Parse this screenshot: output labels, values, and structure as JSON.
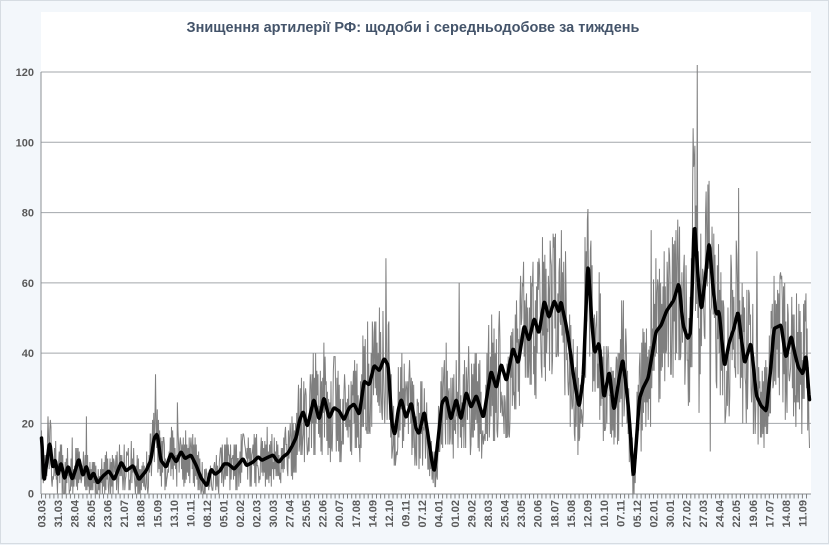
{
  "chart_data": {
    "type": "line",
    "title": "Знищення артилерії РФ: щодоби і середньодобове за тиждень",
    "xlabel": "",
    "ylabel": "",
    "ylim": [
      0,
      124
    ],
    "y_ticks": [
      0,
      20,
      40,
      60,
      80,
      100,
      120
    ],
    "grid": "horizontal",
    "legend": "none",
    "x_label_interval_days": 28,
    "x_minor_tick_interval_days": 7,
    "total_days": 1300,
    "x_labels": [
      "03.03",
      "31.03",
      "28.04",
      "26.05",
      "23.06",
      "21.07",
      "18.08",
      "15.09",
      "13.10",
      "10.11",
      "08.12",
      "05.01",
      "02.02",
      "02.03",
      "30.03",
      "27.04",
      "25.05",
      "22.06",
      "20.07",
      "17.08",
      "14.09",
      "12.10",
      "09.11",
      "07.12",
      "04.01",
      "01.02",
      "29.02",
      "28.03",
      "25.04",
      "23.05",
      "20.06",
      "18.07",
      "15.08",
      "12.09",
      "10.10",
      "07.11",
      "05.12",
      "02.01",
      "30.01",
      "27.02",
      "27.03",
      "24.04",
      "22.05",
      "19.06",
      "17.07",
      "14.08",
      "11.09"
    ],
    "series": [
      {
        "name": "щодоби",
        "kind": "daily",
        "color": "#7f7f7f",
        "stroke_width": 1
      },
      {
        "name": "середньодобове за тиждень",
        "kind": "weekly-average",
        "color": "#000000",
        "stroke_width": 3.5
      }
    ],
    "weekly_avg_anchors": [
      [
        0,
        17
      ],
      [
        4,
        3
      ],
      [
        9,
        9
      ],
      [
        14,
        15
      ],
      [
        19,
        7
      ],
      [
        23,
        10
      ],
      [
        28,
        5
      ],
      [
        33,
        9
      ],
      [
        39,
        4
      ],
      [
        45,
        8
      ],
      [
        52,
        4
      ],
      [
        58,
        7
      ],
      [
        63,
        10
      ],
      [
        70,
        5
      ],
      [
        76,
        8
      ],
      [
        82,
        4
      ],
      [
        88,
        6
      ],
      [
        95,
        3
      ],
      [
        104,
        5
      ],
      [
        114,
        6.5
      ],
      [
        123,
        4
      ],
      [
        135,
        9
      ],
      [
        143,
        6.5
      ],
      [
        155,
        8
      ],
      [
        165,
        4
      ],
      [
        177,
        6.5
      ],
      [
        185,
        9.5
      ],
      [
        191,
        16
      ],
      [
        196,
        17
      ],
      [
        202,
        9.5
      ],
      [
        211,
        7.5
      ],
      [
        219,
        11.5
      ],
      [
        228,
        9
      ],
      [
        236,
        12
      ],
      [
        243,
        10
      ],
      [
        253,
        11
      ],
      [
        262,
        8
      ],
      [
        270,
        4.5
      ],
      [
        280,
        2.2
      ],
      [
        287,
        7
      ],
      [
        294,
        5.5
      ],
      [
        302,
        6.5
      ],
      [
        309,
        8.5
      ],
      [
        316,
        8.5
      ],
      [
        326,
        7
      ],
      [
        334,
        8.5
      ],
      [
        341,
        10
      ],
      [
        347,
        8
      ],
      [
        358,
        9
      ],
      [
        367,
        10.5
      ],
      [
        373,
        9.5
      ],
      [
        385,
        10.5
      ],
      [
        392,
        11
      ],
      [
        398,
        9.5
      ],
      [
        402,
        9
      ],
      [
        409,
        10.5
      ],
      [
        417,
        11.5
      ],
      [
        424,
        13.5
      ],
      [
        431,
        16
      ],
      [
        437,
        21
      ],
      [
        443,
        23.5
      ],
      [
        450,
        19
      ],
      [
        461,
        27
      ],
      [
        470,
        21
      ],
      [
        478,
        27.5
      ],
      [
        487,
        21.5
      ],
      [
        495,
        24.5
      ],
      [
        504,
        23.5
      ],
      [
        512,
        21
      ],
      [
        521,
        24.5
      ],
      [
        529,
        25.5
      ],
      [
        538,
        22.5
      ],
      [
        546,
        32
      ],
      [
        555,
        31
      ],
      [
        563,
        36.5
      ],
      [
        572,
        35
      ],
      [
        580,
        38.5
      ],
      [
        587,
        36.5
      ],
      [
        593,
        20
      ],
      [
        598,
        16.5
      ],
      [
        604,
        24
      ],
      [
        609,
        27
      ],
      [
        617,
        21.5
      ],
      [
        626,
        26
      ],
      [
        634,
        18.5
      ],
      [
        639,
        17
      ],
      [
        648,
        23.5
      ],
      [
        654,
        17
      ],
      [
        660,
        10
      ],
      [
        665,
        6
      ],
      [
        671,
        15
      ],
      [
        678,
        26
      ],
      [
        685,
        27.5
      ],
      [
        693,
        21
      ],
      [
        702,
        27
      ],
      [
        710,
        21
      ],
      [
        719,
        29
      ],
      [
        727,
        24.5
      ],
      [
        736,
        28
      ],
      [
        748,
        21.5
      ],
      [
        761,
        35
      ],
      [
        770,
        30
      ],
      [
        778,
        37
      ],
      [
        787,
        32
      ],
      [
        798,
        41.5
      ],
      [
        807,
        37
      ],
      [
        817,
        48
      ],
      [
        825,
        43.5
      ],
      [
        834,
        50
      ],
      [
        842,
        45.5
      ],
      [
        851,
        55
      ],
      [
        859,
        50
      ],
      [
        868,
        55
      ],
      [
        876,
        51.5
      ],
      [
        879,
        55
      ],
      [
        888,
        48
      ],
      [
        893,
        43
      ],
      [
        901,
        33
      ],
      [
        910,
        24.5
      ],
      [
        917,
        33
      ],
      [
        925,
        66.5
      ],
      [
        931,
        50
      ],
      [
        936,
        40
      ],
      [
        944,
        43
      ],
      [
        952,
        27
      ],
      [
        961,
        35
      ],
      [
        969,
        23.5
      ],
      [
        978,
        33
      ],
      [
        984,
        38.5
      ],
      [
        993,
        25.5
      ],
      [
        998,
        14
      ],
      [
        1002,
        4
      ],
      [
        1007,
        15
      ],
      [
        1012,
        27
      ],
      [
        1018,
        30
      ],
      [
        1027,
        33
      ],
      [
        1040,
        46
      ],
      [
        1049,
        48
      ],
      [
        1058,
        52
      ],
      [
        1070,
        55
      ],
      [
        1079,
        60
      ],
      [
        1086,
        48
      ],
      [
        1094,
        44
      ],
      [
        1099,
        46
      ],
      [
        1105,
        78
      ],
      [
        1112,
        60
      ],
      [
        1117,
        52
      ],
      [
        1124,
        62
      ],
      [
        1130,
        72
      ],
      [
        1137,
        58
      ],
      [
        1142,
        51
      ],
      [
        1147,
        52
      ],
      [
        1156,
        36
      ],
      [
        1164,
        43
      ],
      [
        1172,
        47
      ],
      [
        1179,
        52
      ],
      [
        1190,
        37
      ],
      [
        1201,
        43
      ],
      [
        1210,
        28
      ],
      [
        1218,
        25
      ],
      [
        1227,
        23.5
      ],
      [
        1234,
        35
      ],
      [
        1240,
        47
      ],
      [
        1252,
        48
      ],
      [
        1260,
        38.5
      ],
      [
        1269,
        45
      ],
      [
        1275,
        40
      ],
      [
        1281,
        36
      ],
      [
        1289,
        34
      ],
      [
        1294,
        40
      ],
      [
        1300,
        26
      ]
    ],
    "daily_outliers": {
      "0": 18,
      "11": 22,
      "15": 21,
      "52": 16,
      "76": 22,
      "193": 34,
      "230": 26,
      "583": 67,
      "707": 60,
      "867": 70,
      "887": 69,
      "920": 73,
      "925": 81,
      "1032": 75,
      "1103": 104,
      "1106": 99,
      "1110": 122,
      "1113": 23,
      "1125": 86,
      "1132": 12,
      "1167": 68,
      "1180": 87,
      "1211": 69,
      "1299": 20,
      "1300": 13
    },
    "daily_noise_model": {
      "seed": 7,
      "base_amp": 4,
      "rel_amp": 0.45,
      "max_amp": 22,
      "flip_prob": 0.18,
      "min_mag": 0.2
    },
    "colors": {
      "canvas_bg": "#f3f7fb",
      "plot_bg": "#ffffff",
      "gridline": "#a3a7ab",
      "axis_line": "#8c9094",
      "tick": "#808080",
      "label_text": "#595959",
      "title_text": "#44546a",
      "daily_line": "#7f7f7f",
      "avg_line": "#000000"
    }
  }
}
